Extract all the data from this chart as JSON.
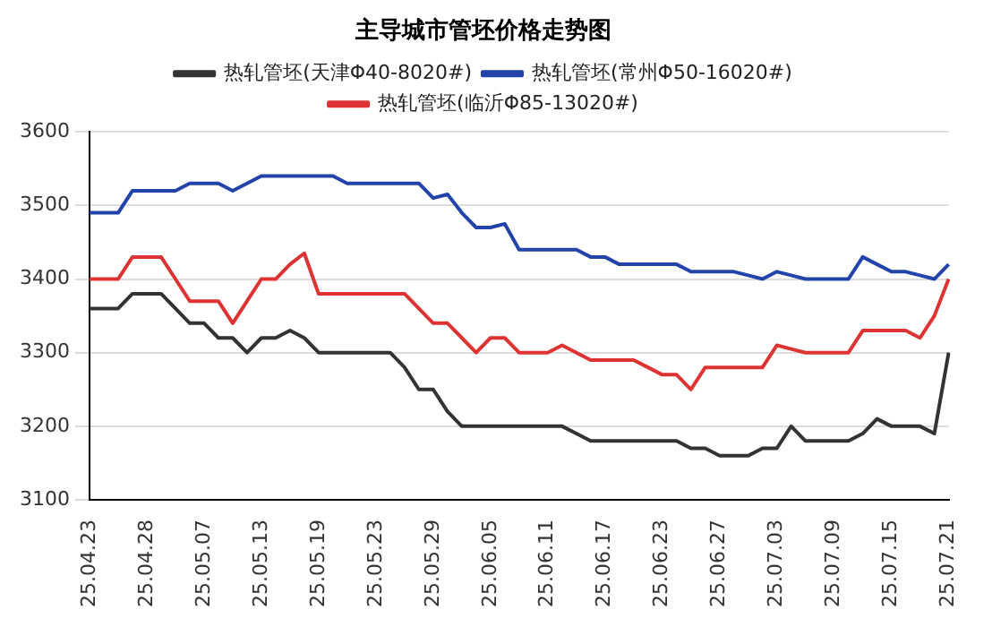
{
  "chart_data": {
    "type": "line",
    "title": "主导城市管坯价格走势图",
    "categories": [
      "25.04.23",
      null,
      null,
      null,
      "25.04.28",
      null,
      null,
      null,
      "25.05.07",
      null,
      null,
      null,
      "25.05.13",
      null,
      null,
      null,
      "25.05.19",
      null,
      null,
      null,
      "25.05.23",
      null,
      null,
      null,
      "25.05.29",
      null,
      null,
      null,
      "25.06.05",
      null,
      null,
      null,
      "25.06.11",
      null,
      null,
      null,
      "25.06.17",
      null,
      null,
      null,
      "25.06.23",
      null,
      null,
      null,
      "25.06.27",
      null,
      null,
      null,
      "25.07.03",
      null,
      null,
      null,
      "25.07.09",
      null,
      null,
      null,
      "25.07.15",
      null,
      null,
      null,
      "25.07.21"
    ],
    "series": [
      {
        "name": "热轧管坯(天津Φ40-8020#)",
        "color": "#333333",
        "values": [
          3360,
          3360,
          3360,
          3380,
          3380,
          3380,
          3360,
          3340,
          3340,
          3320,
          3320,
          3300,
          3320,
          3320,
          3330,
          3320,
          3300,
          3300,
          3300,
          3300,
          3300,
          3300,
          3280,
          3250,
          3250,
          3220,
          3200,
          3200,
          3200,
          3200,
          3200,
          3200,
          3200,
          3200,
          3190,
          3180,
          3180,
          3180,
          3180,
          3180,
          3180,
          3180,
          3170,
          3170,
          3160,
          3160,
          3160,
          3170,
          3170,
          3200,
          3180,
          3180,
          3180,
          3180,
          3190,
          3210,
          3200,
          3200,
          3200,
          3190,
          3300
        ]
      },
      {
        "name": "热轧管坯(常州Φ50-16020#)",
        "color": "#2244aa",
        "values": [
          3490,
          3490,
          3490,
          3520,
          3520,
          3520,
          3520,
          3530,
          3530,
          3530,
          3520,
          3530,
          3540,
          3540,
          3540,
          3540,
          3540,
          3540,
          3530,
          3530,
          3530,
          3530,
          3530,
          3530,
          3510,
          3515,
          3490,
          3470,
          3470,
          3475,
          3440,
          3440,
          3440,
          3440,
          3440,
          3430,
          3430,
          3420,
          3420,
          3420,
          3420,
          3420,
          3410,
          3410,
          3410,
          3410,
          3405,
          3400,
          3410,
          3405,
          3400,
          3400,
          3400,
          3400,
          3430,
          3420,
          3410,
          3410,
          3405,
          3400,
          3420
        ]
      },
      {
        "name": "热轧管坯(临沂Φ85-13020#)",
        "color": "#dd3333",
        "values": [
          3400,
          3400,
          3400,
          3430,
          3430,
          3430,
          3400,
          3370,
          3370,
          3370,
          3340,
          3370,
          3400,
          3400,
          3420,
          3435,
          3380,
          3380,
          3380,
          3380,
          3380,
          3380,
          3380,
          3360,
          3340,
          3340,
          3320,
          3300,
          3320,
          3320,
          3300,
          3300,
          3300,
          3310,
          3300,
          3290,
          3290,
          3290,
          3290,
          3280,
          3270,
          3270,
          3250,
          3280,
          3280,
          3280,
          3280,
          3280,
          3310,
          3305,
          3300,
          3300,
          3300,
          3300,
          3330,
          3330,
          3330,
          3330,
          3320,
          3350,
          3400
        ]
      }
    ],
    "ylim": [
      3100,
      3600
    ],
    "yticks": [
      3100,
      3200,
      3300,
      3400,
      3500,
      3600
    ],
    "grid": "y",
    "legend": "top",
    "marker": "none",
    "line_style": "solid"
  }
}
